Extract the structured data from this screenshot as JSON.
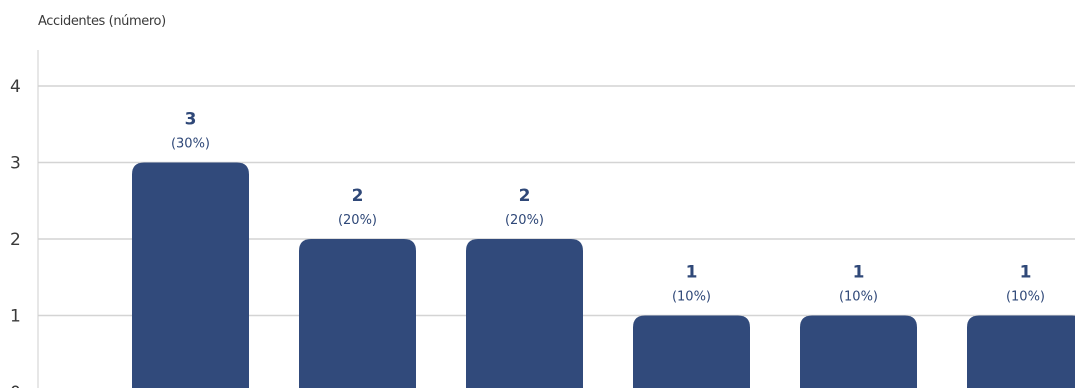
{
  "chart_data": {
    "type": "bar",
    "ylabel": "Accidentes (número)",
    "ylim": [
      0,
      4
    ],
    "yticks": [
      0,
      1,
      2,
      3,
      4
    ],
    "grid": true,
    "bar_color": "#314a7b",
    "grid_color": "#d4d4d4",
    "axis_color": "#cfcfcf",
    "values": [
      3,
      2,
      2,
      1,
      1,
      1
    ],
    "percent_labels": [
      "(30%)",
      "(20%)",
      "(20%)",
      "(10%)",
      "(10%)",
      "(10%)"
    ]
  }
}
